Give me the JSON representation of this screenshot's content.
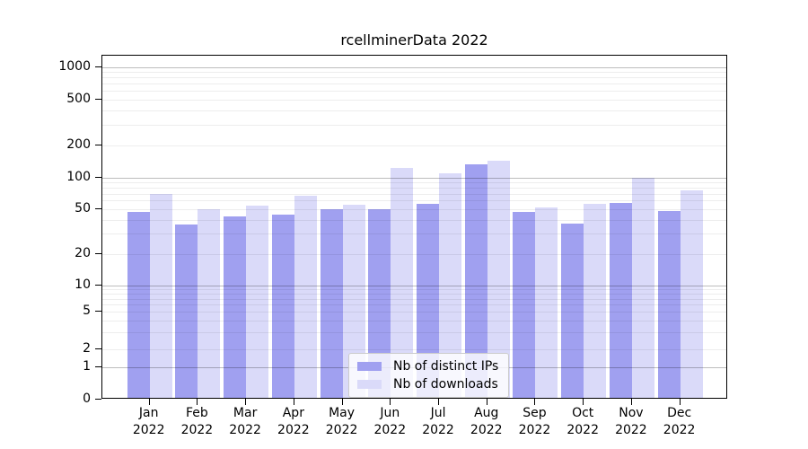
{
  "chart_data": {
    "type": "bar",
    "title": "rcellminerData 2022",
    "categories": [
      "Jan 2022",
      "Feb 2022",
      "Mar 2022",
      "Apr 2022",
      "May 2022",
      "Jun 2022",
      "Jul 2022",
      "Aug 2022",
      "Sep 2022",
      "Oct 2022",
      "Nov 2022",
      "Dec 2022"
    ],
    "series": [
      {
        "name": "Nb of distinct IPs",
        "color": "#a0a0f0",
        "values": [
          47,
          36,
          43,
          44,
          50,
          50,
          56,
          132,
          47,
          37,
          57,
          48
        ]
      },
      {
        "name": "Nb of downloads",
        "color": "#dadaf9",
        "values": [
          69,
          50,
          54,
          66,
          55,
          123,
          110,
          144,
          52,
          56,
          100,
          75
        ]
      }
    ],
    "xlabel": "",
    "ylabel": "",
    "y_ticks": [
      1000,
      500,
      200,
      100,
      50,
      20,
      10,
      5,
      2,
      1,
      0
    ],
    "y_scale": "pseudo-log",
    "ylim": [
      0,
      1400
    ],
    "grid": "horizontal major at powers of 10, faint minors between",
    "legend_position": "lower center"
  }
}
